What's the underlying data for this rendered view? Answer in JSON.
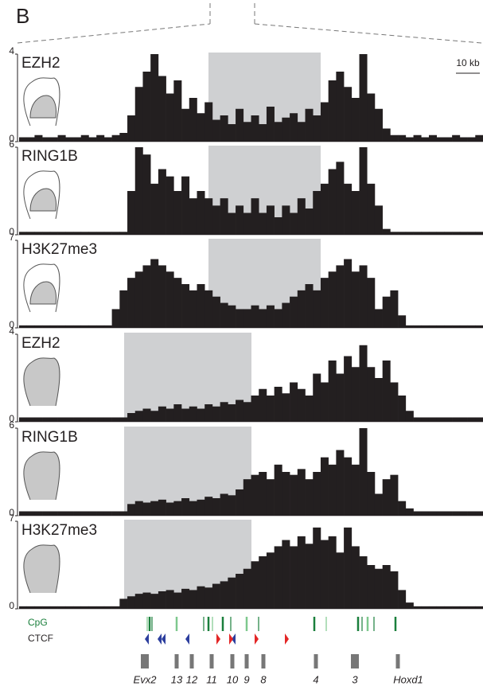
{
  "panel_label": "B",
  "scale_label": "10 kb",
  "cpg_label": "CpG",
  "ctcf_label": "CTCF",
  "genes": [
    "Evx2",
    "13",
    "12",
    "11",
    "10",
    "9",
    "8",
    "4",
    "3",
    "Hoxd1"
  ],
  "chart_data": [
    {
      "type": "bar",
      "title": "EZH2",
      "color": "#231f20",
      "ylim": [
        0,
        4
      ],
      "yticks": [
        0,
        4
      ],
      "values": [
        0.2,
        0.2,
        0.3,
        0.2,
        0.2,
        0.3,
        0.2,
        0.2,
        0.3,
        0.2,
        0.3,
        0.2,
        0.3,
        0.4,
        1.2,
        2.5,
        3.2,
        4,
        3,
        2.2,
        2.8,
        1.5,
        2,
        1.3,
        1.8,
        1,
        1.2,
        0.8,
        1.5,
        0.9,
        1.2,
        0.8,
        1.6,
        0.9,
        1.1,
        1.3,
        0.9,
        1.5,
        1.2,
        1.8,
        2.8,
        3.2,
        2.5,
        2,
        4,
        2.2,
        1.5,
        0.6,
        0.3,
        0.3,
        0.2,
        0.3,
        0.2,
        0.3,
        0.2,
        0.2,
        0.3,
        0.2,
        0.2,
        0.3
      ]
    },
    {
      "type": "bar",
      "title": "RING1B",
      "color": "#231f20",
      "ylim": [
        0,
        6
      ],
      "yticks": [
        0,
        6
      ],
      "values": [
        0.2,
        0.2,
        0.2,
        0.2,
        0.2,
        0.2,
        0.2,
        0.2,
        0.2,
        0.2,
        0.2,
        0.2,
        0.2,
        0.2,
        3,
        6,
        5.5,
        3.5,
        4.5,
        4,
        3,
        4,
        2.5,
        3,
        2.5,
        2,
        2.5,
        1.5,
        2,
        1.5,
        2.5,
        1.5,
        2,
        1.2,
        2,
        1.5,
        2.5,
        1.8,
        3,
        3.5,
        4.5,
        5,
        3.5,
        3,
        6,
        3.5,
        2,
        0.4,
        0.2,
        0.2,
        0.2,
        0.2,
        0.2,
        0.2,
        0.2,
        0.2,
        0.2,
        0.2,
        0.2,
        0.2
      ]
    },
    {
      "type": "bar",
      "title": "H3K27me3",
      "color": "#231f20",
      "ylim": [
        0,
        7
      ],
      "yticks": [
        0,
        7
      ],
      "values": [
        0.2,
        0.2,
        0.2,
        0.2,
        0.2,
        0.2,
        0.2,
        0.2,
        0.2,
        0.2,
        0.2,
        0.2,
        1.5,
        3,
        4,
        4.5,
        5,
        5.5,
        5,
        4.5,
        4,
        3.5,
        3,
        3.5,
        3,
        2.5,
        2,
        1.8,
        1.5,
        1.5,
        1.8,
        1.5,
        1.8,
        1.5,
        2,
        2.5,
        3,
        3.5,
        3,
        4,
        4.5,
        5,
        5.5,
        4.5,
        5,
        4,
        1.5,
        2.5,
        3,
        1,
        0.2,
        0.2,
        0.2,
        0.2,
        0.2,
        0.2,
        0.2,
        0.2,
        0.2,
        0.2
      ]
    },
    {
      "type": "bar",
      "title": "EZH2",
      "color": "#231f20",
      "ylim": [
        0,
        4
      ],
      "yticks": [
        0,
        4
      ],
      "values": [
        0.2,
        0.2,
        0.2,
        0.2,
        0.2,
        0.2,
        0.2,
        0.2,
        0.2,
        0.2,
        0.2,
        0.2,
        0.2,
        0.2,
        0.4,
        0.5,
        0.6,
        0.5,
        0.7,
        0.6,
        0.8,
        0.6,
        0.7,
        0.6,
        0.8,
        0.7,
        0.9,
        0.8,
        1,
        0.9,
        1.2,
        1.5,
        1.2,
        1.6,
        1.3,
        1.8,
        1.5,
        1.2,
        2.2,
        1.8,
        2.8,
        2.2,
        3,
        2.5,
        3.5,
        2.5,
        2,
        2.8,
        1.8,
        1.2,
        0.5,
        0.2,
        0.2,
        0.2,
        0.2,
        0.2,
        0.2,
        0.2,
        0.2,
        0.2
      ]
    },
    {
      "type": "bar",
      "title": "RING1B",
      "color": "#231f20",
      "ylim": [
        0,
        6
      ],
      "yticks": [
        0,
        6
      ],
      "values": [
        0.3,
        0.3,
        0.3,
        0.3,
        0.3,
        0.3,
        0.3,
        0.3,
        0.3,
        0.3,
        0.3,
        0.3,
        0.3,
        0.3,
        0.8,
        1,
        0.9,
        1,
        1.1,
        0.9,
        1,
        1.2,
        1,
        1.1,
        1.3,
        1.2,
        1.5,
        1.4,
        1.8,
        2.5,
        2.8,
        3,
        2.5,
        3.5,
        3,
        2.8,
        3.2,
        2.5,
        3,
        4,
        3.5,
        4.5,
        4,
        3.5,
        6,
        3,
        1.5,
        2.5,
        2.8,
        1,
        0.5,
        0.3,
        0.3,
        0.3,
        0.3,
        0.3,
        0.3,
        0.3,
        0.3,
        0.3
      ]
    },
    {
      "type": "bar",
      "title": "H3K27me3",
      "color": "#231f20",
      "ylim": [
        0,
        7
      ],
      "yticks": [
        0,
        7
      ],
      "values": [
        0.2,
        0.2,
        0.2,
        0.2,
        0.2,
        0.2,
        0.2,
        0.2,
        0.2,
        0.2,
        0.2,
        0.2,
        0.2,
        0.8,
        1,
        1.2,
        1.3,
        1.2,
        1.4,
        1.5,
        1.3,
        1.6,
        1.5,
        1.8,
        1.7,
        2,
        2.2,
        2.5,
        2.8,
        3.2,
        3.8,
        4.2,
        4.5,
        5,
        5.5,
        5,
        5.8,
        5.2,
        6.5,
        5.5,
        5.8,
        4.5,
        6.5,
        5,
        4.2,
        3.5,
        3.2,
        3.5,
        3,
        1.5,
        0.5,
        0.2,
        0.2,
        0.2,
        0.2,
        0.2,
        0.2,
        0.2,
        0.2,
        0.2
      ]
    }
  ]
}
